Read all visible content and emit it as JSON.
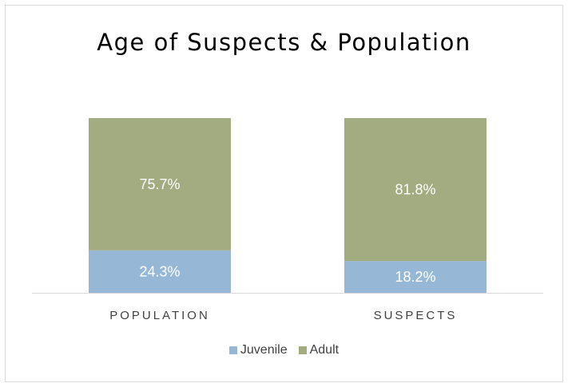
{
  "chart_data": {
    "type": "bar",
    "stacked": true,
    "percent_stacked": true,
    "title": "Age of Suspects & Population",
    "categories": [
      "POPULATION",
      "SUSPECTS"
    ],
    "series": [
      {
        "name": "Juvenile",
        "values": [
          24.3,
          18.2
        ],
        "labels": [
          "24.3%",
          "18.2%"
        ],
        "color": "#96b7d6"
      },
      {
        "name": "Adult",
        "values": [
          75.7,
          81.8
        ],
        "labels": [
          "75.7%",
          "81.8%"
        ],
        "color": "#a3ab80"
      }
    ],
    "ylim": [
      0,
      100
    ],
    "legend_position": "bottom",
    "grid": false
  }
}
